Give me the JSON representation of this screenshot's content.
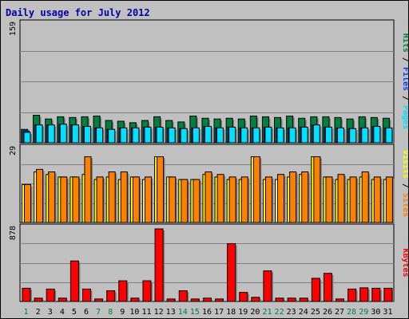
{
  "title": "Daily usage for July 2012",
  "colors": {
    "background": "#c0c0c0",
    "hits": "#008040",
    "files": "#0040ff",
    "pages": "#00e0ff",
    "visits": "#ffff00",
    "sites": "#ff8000",
    "kbytes": "#ff0000",
    "title": "#0000aa",
    "weekend_label": "#008040"
  },
  "chart_data": [
    {
      "type": "bar",
      "panel": "top",
      "ylabel_parts": [
        "Pages",
        "Files",
        "Hits"
      ],
      "ymax_label": "159",
      "ylim": [
        0,
        159
      ],
      "categories": [
        "1",
        "2",
        "3",
        "4",
        "5",
        "6",
        "7",
        "8",
        "9",
        "10",
        "11",
        "12",
        "13",
        "14",
        "15",
        "16",
        "17",
        "18",
        "19",
        "20",
        "21",
        "22",
        "23",
        "24",
        "25",
        "26",
        "27",
        "28",
        "29",
        "30",
        "31"
      ],
      "weekend_days": [
        1,
        7,
        8,
        14,
        15,
        21,
        22,
        28,
        29
      ],
      "series": [
        {
          "name": "Hits",
          "values": [
            18,
            37,
            32,
            35,
            34,
            35,
            36,
            30,
            29,
            27,
            30,
            35,
            30,
            28,
            36,
            33,
            32,
            33,
            32,
            36,
            35,
            34,
            36,
            33,
            35,
            35,
            34,
            32,
            35,
            34,
            33
          ]
        },
        {
          "name": "Files",
          "values": [
            16,
            24,
            24,
            25,
            24,
            22,
            20,
            18,
            20,
            20,
            21,
            21,
            20,
            19,
            20,
            22,
            20,
            21,
            20,
            20,
            21,
            20,
            20,
            21,
            24,
            21,
            20,
            19,
            20,
            22,
            20
          ]
        },
        {
          "name": "Pages",
          "values": [
            14,
            24,
            24,
            25,
            24,
            22,
            20,
            18,
            20,
            20,
            21,
            21,
            20,
            19,
            20,
            22,
            20,
            21,
            20,
            20,
            21,
            20,
            20,
            21,
            24,
            21,
            20,
            19,
            20,
            22,
            20
          ]
        }
      ]
    },
    {
      "type": "bar",
      "panel": "middle",
      "ylabel_parts": [
        "Sites",
        "Visits"
      ],
      "ymax_label": "29",
      "ylim": [
        0,
        29
      ],
      "series": [
        {
          "name": "Visits",
          "values": [
            15,
            20,
            19,
            18,
            18,
            19,
            17,
            18,
            17,
            18,
            17,
            26,
            18,
            17,
            17,
            19,
            18,
            17,
            17,
            26,
            17,
            17,
            18,
            19,
            26,
            18,
            17,
            17,
            18,
            17,
            17
          ]
        },
        {
          "name": "Sites",
          "values": [
            15,
            21,
            20,
            18,
            18,
            26,
            18,
            20,
            20,
            18,
            18,
            26,
            18,
            17,
            17,
            20,
            19,
            18,
            18,
            26,
            18,
            19,
            20,
            20,
            26,
            18,
            19,
            18,
            20,
            18,
            18
          ]
        }
      ]
    },
    {
      "type": "bar",
      "panel": "bottom",
      "ylabel_parts": [
        "KBytes"
      ],
      "ymax_label": "878",
      "ylim": [
        0,
        878
      ],
      "series": [
        {
          "name": "KBytes",
          "values": [
            160,
            40,
            150,
            40,
            490,
            150,
            30,
            130,
            250,
            40,
            250,
            878,
            30,
            130,
            30,
            40,
            30,
            700,
            110,
            50,
            370,
            40,
            40,
            40,
            280,
            340,
            30,
            150,
            165,
            160,
            160
          ]
        }
      ]
    }
  ]
}
